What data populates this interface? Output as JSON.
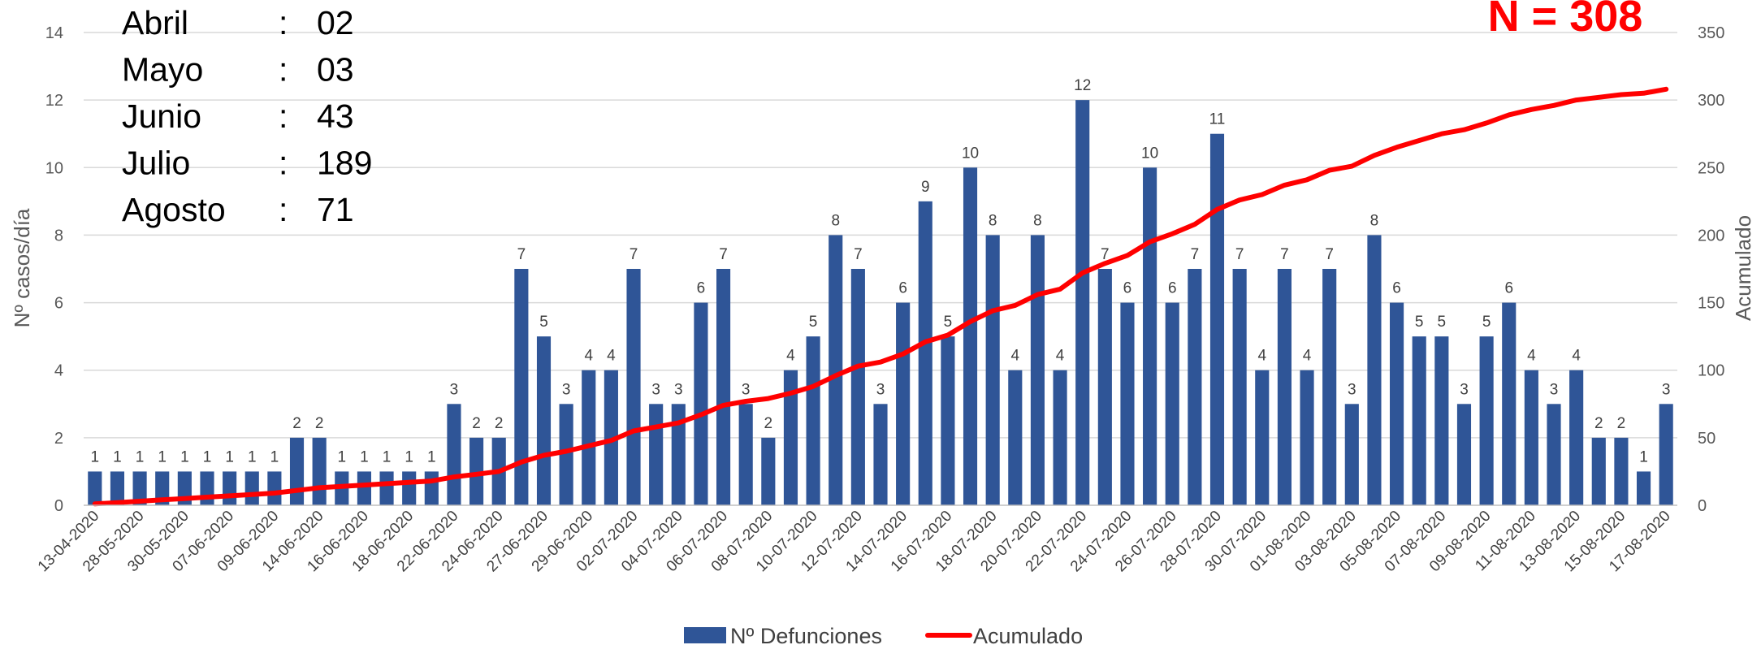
{
  "colors": {
    "bars": "#2F5597",
    "line": "#FF0000",
    "grid": "#D9D9D9",
    "total": "#FF0000"
  },
  "total_label": "N = 308",
  "summary": [
    {
      "month": "Abril",
      "sep": ":",
      "value": "02"
    },
    {
      "month": "Mayo",
      "sep": ":",
      "value": "03"
    },
    {
      "month": "Junio",
      "sep": ":",
      "value": "43"
    },
    {
      "month": "Julio",
      "sep": ":",
      "value": "189"
    },
    {
      "month": "Agosto",
      "sep": ":",
      "value": "71"
    }
  ],
  "chart_data": {
    "type": "bar",
    "ylabel": "Nº casos/día",
    "y2label": "Acumulado",
    "ylim": [
      0,
      14
    ],
    "y2lim": [
      0,
      350
    ],
    "yticks": [
      0,
      2,
      4,
      6,
      8,
      10,
      12,
      14
    ],
    "y2ticks": [
      0,
      50,
      100,
      150,
      200,
      250,
      300,
      350
    ],
    "grid": true,
    "legend_position": "bottom",
    "x_tick_labels": [
      "13-04-2020",
      "28-05-2020",
      "30-05-2020",
      "07-06-2020",
      "09-06-2020",
      "14-06-2020",
      "16-06-2020",
      "18-06-2020",
      "22-06-2020",
      "24-06-2020",
      "27-06-2020",
      "29-06-2020",
      "02-07-2020",
      "04-07-2020",
      "06-07-2020",
      "08-07-2020",
      "10-07-2020",
      "12-07-2020",
      "14-07-2020",
      "16-07-2020",
      "18-07-2020",
      "20-07-2020",
      "22-07-2020",
      "24-07-2020",
      "26-07-2020",
      "28-07-2020",
      "30-07-2020",
      "01-08-2020",
      "03-08-2020",
      "05-08-2020",
      "07-08-2020",
      "09-08-2020",
      "11-08-2020",
      "13-08-2020",
      "15-08-2020",
      "17-08-2020"
    ],
    "series": [
      {
        "name": "Nº Defunciones",
        "type": "bar",
        "values": [
          1,
          1,
          1,
          1,
          1,
          1,
          1,
          1,
          1,
          2,
          2,
          1,
          1,
          1,
          1,
          1,
          3,
          2,
          2,
          7,
          5,
          3,
          4,
          4,
          7,
          3,
          3,
          6,
          7,
          3,
          2,
          4,
          5,
          8,
          7,
          3,
          6,
          9,
          5,
          10,
          8,
          4,
          8,
          4,
          12,
          7,
          6,
          10,
          6,
          7,
          11,
          7,
          4,
          7,
          4,
          7,
          3,
          8,
          6,
          5,
          5,
          3,
          5,
          6,
          4,
          3,
          4,
          2,
          2,
          1,
          3
        ]
      },
      {
        "name": "Acumulado",
        "type": "line",
        "values": [
          1,
          2,
          3,
          4,
          5,
          6,
          7,
          8,
          9,
          11,
          13,
          14,
          15,
          16,
          17,
          18,
          21,
          23,
          25,
          32,
          37,
          40,
          44,
          48,
          55,
          58,
          61,
          67,
          74,
          77,
          79,
          83,
          88,
          96,
          103,
          106,
          112,
          121,
          126,
          136,
          144,
          148,
          156,
          160,
          172,
          179,
          185,
          195,
          201,
          208,
          219,
          226,
          230,
          237,
          241,
          248,
          251,
          259,
          265,
          270,
          275,
          278,
          283,
          289,
          293,
          296,
          300,
          302,
          304,
          305,
          308
        ]
      }
    ]
  }
}
